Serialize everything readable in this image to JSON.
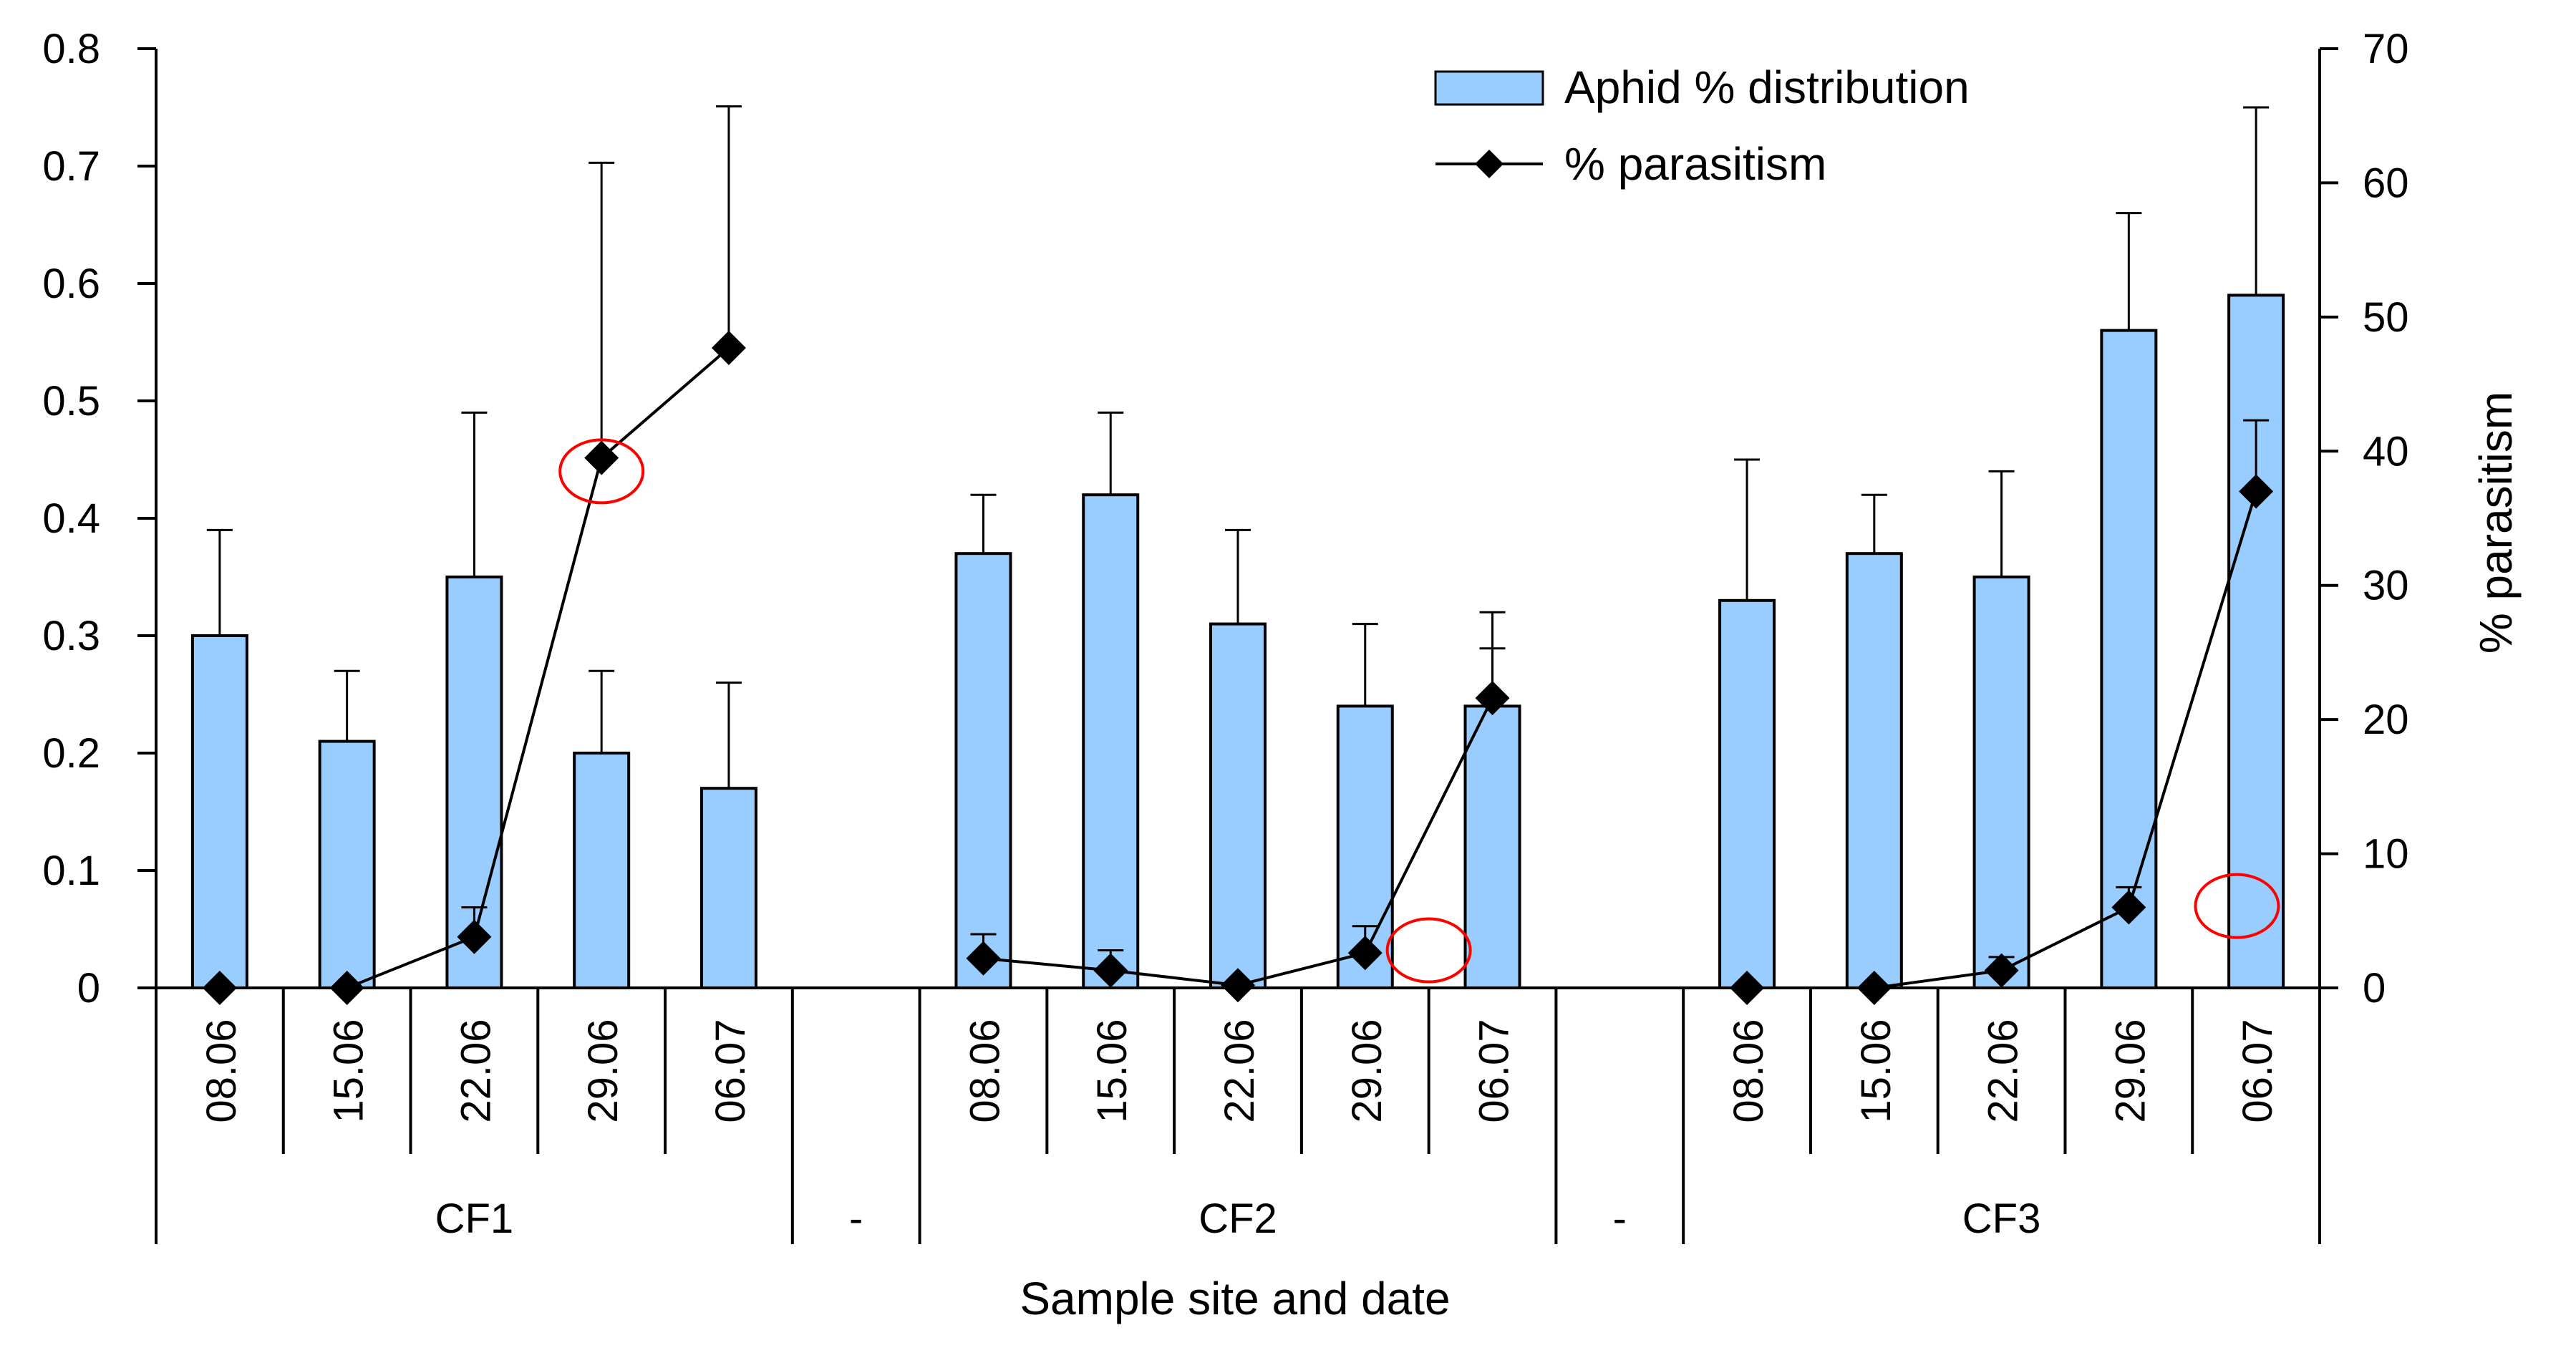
{
  "chart_data": {
    "type": "bar",
    "xlabel": "Sample site and date",
    "ylabel_left": "",
    "ylabel_right": "% parasitism",
    "ylim_left": [
      0,
      0.8
    ],
    "yticks_left": [
      0,
      0.1,
      0.2,
      0.3,
      0.4,
      0.5,
      0.6,
      0.7,
      0.8
    ],
    "ylim_right": [
      0,
      70
    ],
    "yticks_right": [
      0,
      10,
      20,
      30,
      40,
      50,
      60,
      70
    ],
    "legend_position": "top-right",
    "groups": [
      "CF1",
      "-",
      "CF2",
      "-",
      "CF3"
    ],
    "categories": [
      "08.06",
      "15.06",
      "22.06",
      "29.06",
      "06.07",
      "",
      "08.06",
      "15.06",
      "22.06",
      "29.06",
      "06.07",
      "",
      "08.06",
      "15.06",
      "22.06",
      "29.06",
      "06.07"
    ],
    "series": [
      {
        "name": "Aphid % distribution",
        "kind": "bar",
        "axis": "left",
        "color": "#99ccff",
        "values": [
          0.3,
          0.21,
          0.35,
          0.2,
          0.17,
          null,
          0.37,
          0.42,
          0.31,
          0.24,
          0.24,
          null,
          0.33,
          0.37,
          0.35,
          0.56,
          0.59
        ],
        "error": [
          0.09,
          0.06,
          0.14,
          0.07,
          0.09,
          null,
          0.05,
          0.07,
          0.08,
          0.07,
          0.08,
          null,
          0.12,
          0.05,
          0.09,
          0.1,
          0.16
        ]
      },
      {
        "name": "% parasitism",
        "kind": "line",
        "axis": "right",
        "color": "#000000",
        "marker": "diamond",
        "values": [
          0,
          0,
          3.8,
          39.5,
          47.7,
          null,
          2.2,
          1.3,
          0.2,
          2.6,
          21.6,
          null,
          0,
          0,
          1.3,
          6,
          37
        ],
        "error": [
          0,
          0,
          2.2,
          22,
          18,
          null,
          1.8,
          1.5,
          0,
          2,
          3.7,
          null,
          0,
          0,
          1,
          1.5,
          5.3
        ]
      }
    ],
    "annotations": [
      {
        "type": "circle",
        "color": "#ff0000",
        "x_index": 3,
        "y_right": 38.5
      },
      {
        "type": "circle",
        "color": "#ff0000",
        "x_index": 9.5,
        "y_right": 2.8
      },
      {
        "type": "circle",
        "color": "#ff0000",
        "x_index": 15.85,
        "y_right": 6.1
      }
    ]
  }
}
